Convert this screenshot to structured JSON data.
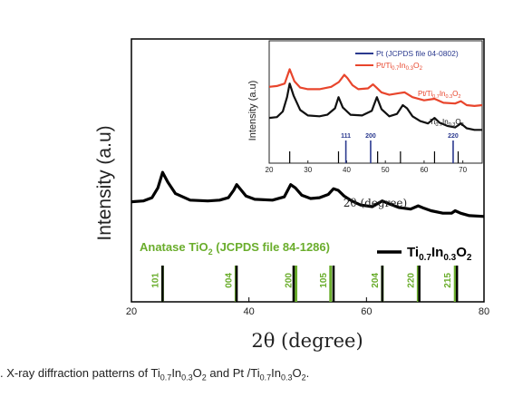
{
  "chart_data": [
    {
      "type": "line",
      "xlabel": "2θ (degree)",
      "ylabel": "Intensity (a.u)",
      "xlim": [
        20,
        80
      ],
      "xticks": [
        20,
        40,
        60,
        80
      ],
      "yticks": "none",
      "series": [
        {
          "name": "Ti0.7In0.3O2",
          "color": "#000000",
          "x": [
            20,
            22,
            23.5,
            24.5,
            25.3,
            26.2,
            27.5,
            30,
            33,
            35,
            36.5,
            37.4,
            37.9,
            38.6,
            39.5,
            41,
            44,
            46,
            47.1,
            47.9,
            49,
            50.5,
            52,
            53.5,
            54.4,
            55.2,
            56.2,
            57.5,
            59,
            61,
            62.7,
            64,
            65.5,
            67.5,
            68.8,
            69.8,
            71,
            73,
            74.5,
            75.1,
            76,
            77.5,
            80
          ],
          "y": [
            0.36,
            0.37,
            0.41,
            0.53,
            0.72,
            0.6,
            0.46,
            0.38,
            0.37,
            0.38,
            0.41,
            0.5,
            0.57,
            0.51,
            0.43,
            0.39,
            0.38,
            0.42,
            0.57,
            0.53,
            0.44,
            0.4,
            0.41,
            0.45,
            0.52,
            0.5,
            0.43,
            0.37,
            0.32,
            0.3,
            0.37,
            0.33,
            0.29,
            0.27,
            0.31,
            0.28,
            0.25,
            0.22,
            0.22,
            0.25,
            0.22,
            0.19,
            0.18
          ]
        }
      ],
      "reference_pattern": {
        "name": "Anatase TiO2 (JCPDS file 84-1286)",
        "color": "#6aad2c",
        "peaks": [
          {
            "x": 25.3,
            "label": "101"
          },
          {
            "x": 37.8,
            "label": "004"
          },
          {
            "x": 48.0,
            "label": "200"
          },
          {
            "x": 53.9,
            "label": "105"
          },
          {
            "x": 62.7,
            "label": "204"
          },
          {
            "x": 68.8,
            "label": "220"
          },
          {
            "x": 75.1,
            "label": "215"
          }
        ]
      },
      "sample_ticks": {
        "name": "Ti0.7In0.3O2",
        "color": "#000000",
        "x": [
          25.3,
          37.9,
          47.6,
          54.4,
          62.7,
          69.0,
          75.4
        ]
      },
      "legend_text": {
        "reference_prefix": "Anatase TiO",
        "reference_sub": "2",
        "reference_suffix": " (JCPDS file 84-1286)",
        "sample_ti": "Ti",
        "sample_ti_sub": "0.7",
        "sample_in": "In",
        "sample_in_sub": "0.3",
        "sample_o": "O",
        "sample_o_sub": "2"
      }
    },
    {
      "type": "line",
      "xlabel": "2θ (degree)",
      "ylabel": "Intensity (a.u)",
      "xlim": [
        20,
        75
      ],
      "xticks": [
        20,
        30,
        40,
        50,
        60,
        70
      ],
      "series": [
        {
          "name": "Pt/Ti0.7In0.3O2",
          "color": "#e8452c",
          "x": [
            20,
            22,
            24,
            25.3,
            26.5,
            28,
            30,
            33,
            36,
            38,
            39.4,
            40.2,
            41.5,
            43,
            45.5,
            46.8,
            47.5,
            49,
            51,
            53.5,
            55,
            57,
            60,
            62.7,
            65,
            68,
            69.5,
            71,
            73,
            75
          ],
          "y": [
            0.73,
            0.74,
            0.77,
            0.95,
            0.8,
            0.72,
            0.7,
            0.7,
            0.73,
            0.79,
            0.88,
            0.84,
            0.75,
            0.7,
            0.71,
            0.76,
            0.73,
            0.66,
            0.63,
            0.65,
            0.66,
            0.6,
            0.56,
            0.58,
            0.53,
            0.52,
            0.55,
            0.5,
            0.49,
            0.5
          ]
        },
        {
          "name": "Ti0.7In0.3O2",
          "color": "#111111",
          "x": [
            20,
            22,
            23.5,
            24.6,
            25.3,
            26.3,
            28,
            30,
            33,
            35,
            37,
            37.9,
            39,
            41,
            44,
            46.5,
            47.8,
            49,
            51,
            53,
            54.5,
            55.6,
            57,
            59,
            61,
            62.7,
            64,
            66,
            68,
            69.5,
            71,
            73,
            75
          ],
          "y": [
            0.34,
            0.35,
            0.42,
            0.6,
            0.77,
            0.62,
            0.44,
            0.37,
            0.36,
            0.38,
            0.46,
            0.6,
            0.47,
            0.38,
            0.37,
            0.43,
            0.6,
            0.45,
            0.36,
            0.39,
            0.5,
            0.46,
            0.36,
            0.3,
            0.27,
            0.34,
            0.28,
            0.24,
            0.22,
            0.27,
            0.21,
            0.19,
            0.19
          ]
        }
      ],
      "reference_pattern": {
        "name": "Pt (JCPDS file 04-0802)",
        "color": "#2b3a8f",
        "peaks": [
          {
            "x": 39.8,
            "label": "111"
          },
          {
            "x": 46.2,
            "label": "200"
          },
          {
            "x": 67.5,
            "label": "220"
          }
        ]
      },
      "sample_ticks": {
        "name": "Ti0.7In0.3O2",
        "color": "#000000",
        "x": [
          25.3,
          37.9,
          48.0,
          53.9,
          62.7,
          68.8
        ]
      },
      "legend_text": {
        "pt_label": "Pt (JCPDS file 04-0802)",
        "ptti_prefix": "Pt/Ti",
        "ptti_sub1": "0.7",
        "ptti_in": "In",
        "ptti_sub2": "0.3",
        "ptti_o": "O",
        "ptti_sub3": "2"
      },
      "curve_labels": {
        "pt_prefix": "Pt/Ti",
        "ti": "Ti",
        "sub_a": "0.7",
        "in": "In",
        "sub_b": "0.3",
        "o": "O",
        "sub_c": "2"
      }
    }
  ],
  "caption": {
    "prefix": ". X-ray diffraction patterns of Ti",
    "s1": "0.7",
    "in1": "In",
    "s2": "0.3",
    "o1": "O",
    "s3": "2",
    "mid": " and Pt /Ti",
    "s4": "0.7",
    "in2": "In",
    "s5": "0.3",
    "o2": "O",
    "s6": "2",
    "end": "."
  }
}
